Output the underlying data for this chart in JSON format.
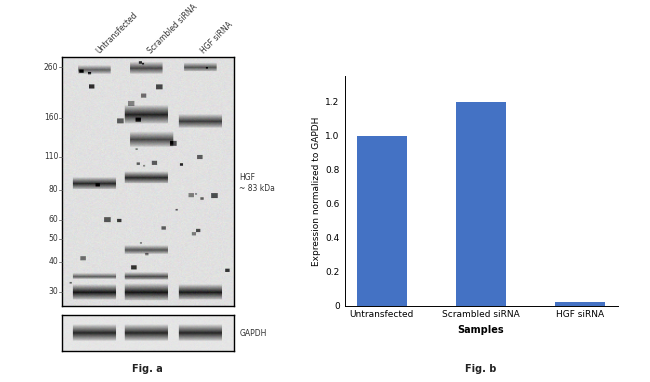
{
  "fig_width": 6.5,
  "fig_height": 3.82,
  "background_color": "#ffffff",
  "wb_panel": {
    "lane_labels": [
      "Untransfected",
      "Scrambled siRNA",
      "HGF siRNA"
    ],
    "mw_markers": [
      260,
      160,
      110,
      80,
      60,
      50,
      40,
      30
    ],
    "hgf_label": "HGF\n~ 83 kDa",
    "gapdh_label": "GAPDH",
    "fig_label": "Fig. a",
    "band_color": "#111111",
    "bg_color": "#e0e0e0"
  },
  "bar_panel": {
    "categories": [
      "Untransfected",
      "Scrambled siRNA",
      "HGF siRNA"
    ],
    "values": [
      1.0,
      1.2,
      0.02
    ],
    "bar_color": "#4472c4",
    "bar_width": 0.5,
    "xlabel": "Samples",
    "ylabel": "Expression normalized to GAPDH",
    "ylim": [
      0,
      1.35
    ],
    "yticks": [
      0,
      0.2,
      0.4,
      0.6,
      0.8,
      1.0,
      1.2
    ],
    "fig_label": "Fig. b",
    "xlabel_fontsize": 7,
    "ylabel_fontsize": 6.5,
    "tick_fontsize": 6.5
  }
}
